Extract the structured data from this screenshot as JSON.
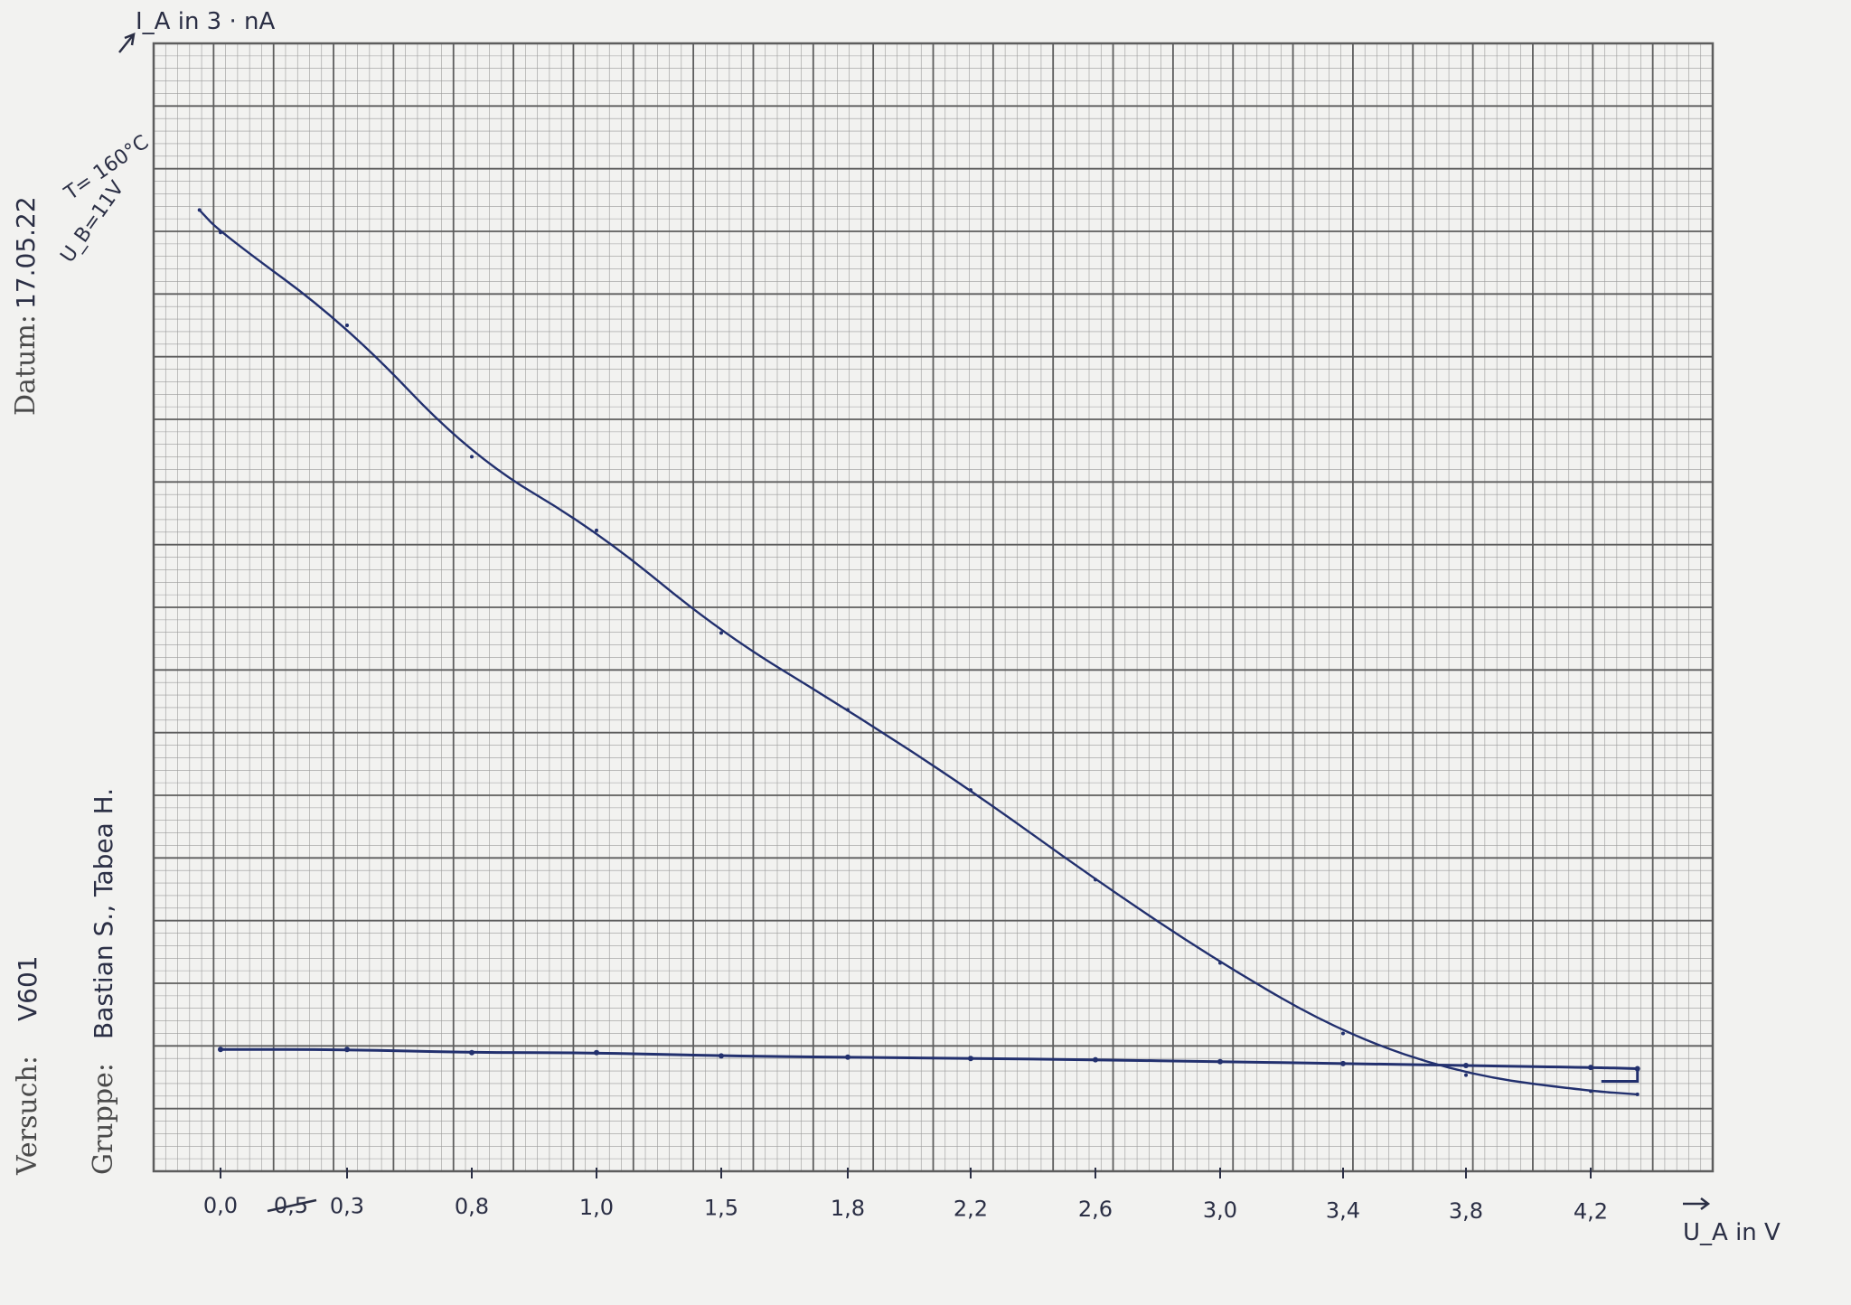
{
  "header": {
    "versuch_label": "Versuch:",
    "versuch_value": "V601",
    "gruppe_label": "Gruppe:",
    "gruppe_value": "Bastian S., Tabea H.",
    "datum_label": "Datum:",
    "datum_value": "17.05.22",
    "temperature_note": "T= 160°C",
    "voltage_note": "U_B=11V"
  },
  "colors": {
    "ink": "#22306e",
    "grid_major": "#5d5d5d",
    "grid_minor": "#9a9a9a",
    "paper": "#f2f2f0"
  },
  "chart_data": {
    "type": "line",
    "title": "",
    "xlabel": "U_A in V",
    "ylabel": "I_A in 3 · nA",
    "x_ticks": [
      "0,0",
      "0,3",
      "0,8",
      "1,0",
      "1,5",
      "1,8",
      "2,2",
      "2,6",
      "3,0",
      "3,4",
      "3,8",
      "4,2"
    ],
    "x_tick_struck": "0,5",
    "y_ticks": [],
    "grid": true,
    "series": [
      {
        "name": "",
        "x": [
          -0.05,
          0.0,
          0.3,
          0.8,
          1.0,
          1.5,
          1.8,
          2.2,
          2.6,
          3.0,
          3.4,
          3.8,
          4.2,
          4.35
        ],
        "y": [
          15.0,
          14.65,
          13.2,
          11.15,
          10.0,
          8.4,
          7.2,
          5.95,
          4.55,
          3.25,
          2.15,
          1.5,
          1.25,
          1.2
        ]
      },
      {
        "name": "",
        "x": [
          0.0,
          0.3,
          0.8,
          1.0,
          1.5,
          1.8,
          2.2,
          2.6,
          3.0,
          3.4,
          3.8,
          4.2,
          4.35
        ],
        "y": [
          1.9,
          1.9,
          1.85,
          1.85,
          1.8,
          1.78,
          1.76,
          1.74,
          1.71,
          1.68,
          1.65,
          1.62,
          1.6
        ]
      }
    ]
  }
}
